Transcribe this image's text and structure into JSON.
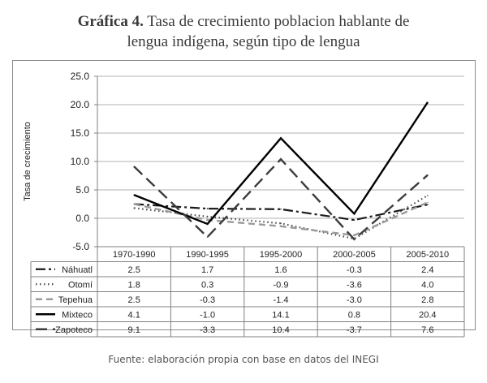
{
  "header": {
    "figure_label": "Gráfica 4.",
    "title_line1": "Tasa de crecimiento poblacion hablante de",
    "title_line2": "lengua indígena, según tipo de lengua"
  },
  "source_note": "Fuente: elaboración propia con base en datos del INEGI",
  "chart_data": {
    "type": "line",
    "title": "Gráfica 4. Tasa de crecimiento poblacion hablante de lengua indígena, según tipo de lengua",
    "xlabel": "",
    "ylabel": "Tasa de crecimiento",
    "ylim": [
      -5.0,
      25.0
    ],
    "yticks": [
      "25.0",
      "20.0",
      "15.0",
      "10.0",
      "5.0",
      "0.0",
      "-5.0"
    ],
    "grid": true,
    "legend": "data-table-below",
    "categories": [
      "1970-1990",
      "1990-1995",
      "1995-2000",
      "2000-2005",
      "2005-2010"
    ],
    "series": [
      {
        "name": "Náhuatl",
        "values": [
          2.5,
          1.7,
          1.6,
          -0.3,
          2.4
        ],
        "labels": [
          "2.5",
          "1.7",
          "1.6",
          "-0.3",
          "2.4"
        ],
        "color": "#1a1a1a",
        "style": "dashdot"
      },
      {
        "name": "Otomí",
        "values": [
          1.8,
          0.3,
          -0.9,
          -3.6,
          4.0
        ],
        "labels": [
          "1.8",
          "0.3",
          "-0.9",
          "-3.6",
          "4.0"
        ],
        "color": "#4a4a4a",
        "style": "dotted"
      },
      {
        "name": "Tepehua",
        "values": [
          2.5,
          -0.3,
          -1.4,
          -3.0,
          2.8
        ],
        "labels": [
          "2.5",
          "-0.3",
          "-1.4",
          "-3.0",
          "2.8"
        ],
        "color": "#9a9a9a",
        "style": "dashed"
      },
      {
        "name": "Mixteco",
        "values": [
          4.1,
          -1.0,
          14.1,
          0.8,
          20.4
        ],
        "labels": [
          "4.1",
          "-1.0",
          "14.1",
          "0.8",
          "20.4"
        ],
        "color": "#000000",
        "style": "solid"
      },
      {
        "name": "Zapoteco",
        "values": [
          9.1,
          -3.3,
          10.4,
          -3.7,
          7.6
        ],
        "labels": [
          "9.1",
          "-3.3",
          "10.4",
          "-3.7",
          "7.6"
        ],
        "color": "#3c3c3c",
        "style": "longdash"
      }
    ]
  }
}
